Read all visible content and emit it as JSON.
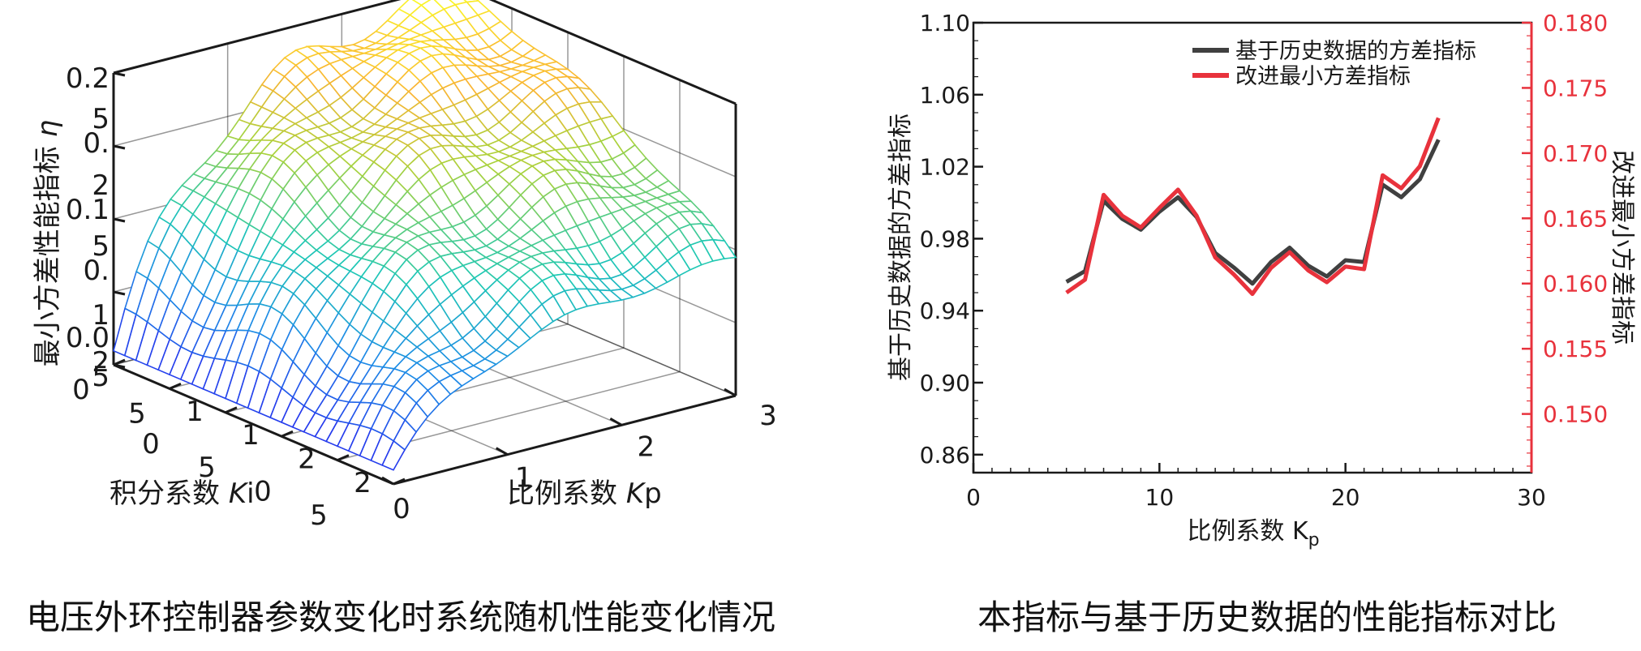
{
  "captions": {
    "left": "电压外环控制器参数变化时系统随机性能变化情况",
    "right": "本指标与基于历史数据的性能指标对比"
  },
  "colors": {
    "series_history": "#404040",
    "series_improved": "#e8323c",
    "right_axis": "#e8323c",
    "surface_low": "#2020ff",
    "surface_mid": "#20c0b0",
    "surface_high": "#ffff40"
  },
  "chart_data": [
    {
      "type": "surface3d",
      "title": "",
      "zlabel_main": "最小方差性能指标",
      "zlabel_symbol": "η",
      "xlabel_main": "比例系数",
      "xlabel_symbol": "K",
      "xlabel_sub": "p",
      "ylabel_main": "积分系数",
      "ylabel_symbol": "K",
      "ylabel_sub": "i",
      "x_ticks": [
        "0",
        "1",
        "2",
        "3"
      ],
      "y_ticks": [
        "0",
        "5",
        "10",
        "15",
        "20",
        "25"
      ],
      "z_ticks": [
        "0.0",
        "0.1",
        "0.1",
        "0.2",
        "0.2"
      ],
      "x_range": [
        0,
        3
      ],
      "y_range": [
        0,
        25
      ],
      "z_range": [
        0.0,
        0.25
      ],
      "grid": true,
      "colormap": "parula",
      "note": "surface approximate: rises from ~0.01 at Kp=0,Ki=25 to ~0.25 at Kp=3,Ki=0"
    },
    {
      "type": "line",
      "title": "",
      "xlabel_main": "比例系数 K",
      "xlabel_sub": "p",
      "ylabel_left": "基于历史数据的方差指标",
      "ylabel_right": "改进最小方差指标",
      "x_range": [
        0,
        30
      ],
      "x_ticks": [
        "0",
        "10",
        "20",
        "30"
      ],
      "y_left_range": [
        0.85,
        1.1
      ],
      "y_left_ticks": [
        "0.86",
        "0.90",
        "0.94",
        "0.98",
        "1.02",
        "1.06",
        "1.10"
      ],
      "y_right_range": [
        0.1455,
        0.18
      ],
      "y_right_ticks": [
        "0.150",
        "0.155",
        "0.160",
        "0.165",
        "0.170",
        "0.175",
        "0.180"
      ],
      "legend_position": "top-right",
      "series": [
        {
          "name": "基于历史数据的方差指标",
          "axis": "left",
          "x": [
            5,
            6,
            7,
            8,
            9,
            10,
            11,
            12,
            13,
            14,
            15,
            16,
            17,
            18,
            19,
            20,
            21,
            22,
            23,
            24,
            25
          ],
          "values": [
            0.956,
            0.962,
            1.001,
            0.991,
            0.985,
            0.995,
            1.003,
            0.992,
            0.972,
            0.964,
            0.955,
            0.967,
            0.975,
            0.965,
            0.959,
            0.968,
            0.967,
            1.01,
            1.003,
            1.013,
            1.035
          ]
        },
        {
          "name": "改进最小方差指标",
          "axis": "right",
          "x": [
            5,
            6,
            7,
            8,
            9,
            10,
            11,
            12,
            13,
            14,
            15,
            16,
            17,
            18,
            19,
            20,
            21,
            22,
            23,
            24,
            25
          ],
          "values": [
            0.1593,
            0.1603,
            0.1668,
            0.1652,
            0.1643,
            0.1658,
            0.1672,
            0.1652,
            0.162,
            0.1607,
            0.1592,
            0.1612,
            0.1624,
            0.161,
            0.1601,
            0.1613,
            0.1611,
            0.1683,
            0.1673,
            0.169,
            0.1727
          ]
        }
      ]
    }
  ]
}
